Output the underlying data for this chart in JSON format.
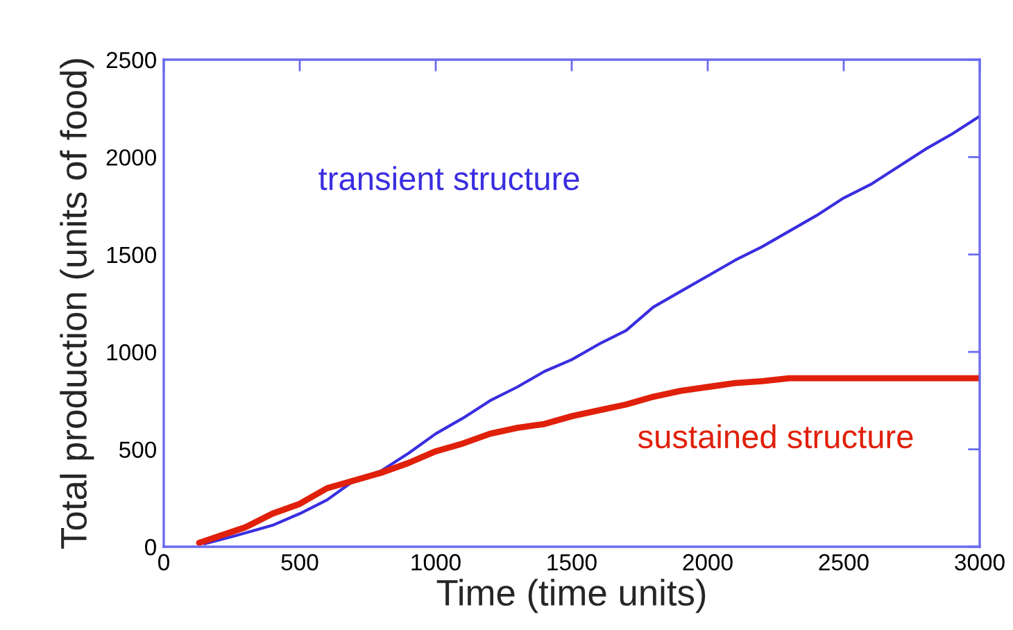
{
  "chart_data": {
    "type": "line",
    "xlabel": "Time (time units)",
    "ylabel": "Total production (units of food)",
    "xlim": [
      0,
      3000
    ],
    "xticks": [
      0,
      500,
      1000,
      1500,
      2000,
      2500,
      3000
    ],
    "ylim": [
      0,
      2500
    ],
    "yticks": [
      0,
      500,
      1000,
      1500,
      2000,
      2500
    ],
    "grid": false,
    "legend": false,
    "series": [
      {
        "name": "transient structure",
        "color": "#3a2ee0",
        "x": [
          150,
          260,
          400,
          500,
          600,
          700,
          800,
          900,
          1000,
          1100,
          1200,
          1300,
          1400,
          1500,
          1600,
          1700,
          1800,
          1900,
          2000,
          2100,
          2200,
          2300,
          2400,
          2500,
          2600,
          2700,
          2800,
          2900,
          3000
        ],
        "values": [
          15,
          55,
          110,
          170,
          240,
          340,
          390,
          480,
          580,
          660,
          750,
          820,
          900,
          960,
          1040,
          1110,
          1230,
          1310,
          1390,
          1470,
          1540,
          1620,
          1700,
          1790,
          1860,
          1950,
          2040,
          2120,
          2210
        ]
      },
      {
        "name": "sustained structure",
        "color": "#e0200a",
        "x": [
          130,
          300,
          400,
          500,
          600,
          700,
          800,
          900,
          1000,
          1100,
          1200,
          1300,
          1400,
          1500,
          1600,
          1700,
          1800,
          1900,
          2000,
          2100,
          2200,
          2300,
          3000
        ],
        "values": [
          20,
          100,
          170,
          220,
          300,
          340,
          380,
          430,
          490,
          530,
          580,
          610,
          630,
          670,
          700,
          730,
          770,
          800,
          820,
          840,
          850,
          865,
          865
        ]
      }
    ]
  }
}
